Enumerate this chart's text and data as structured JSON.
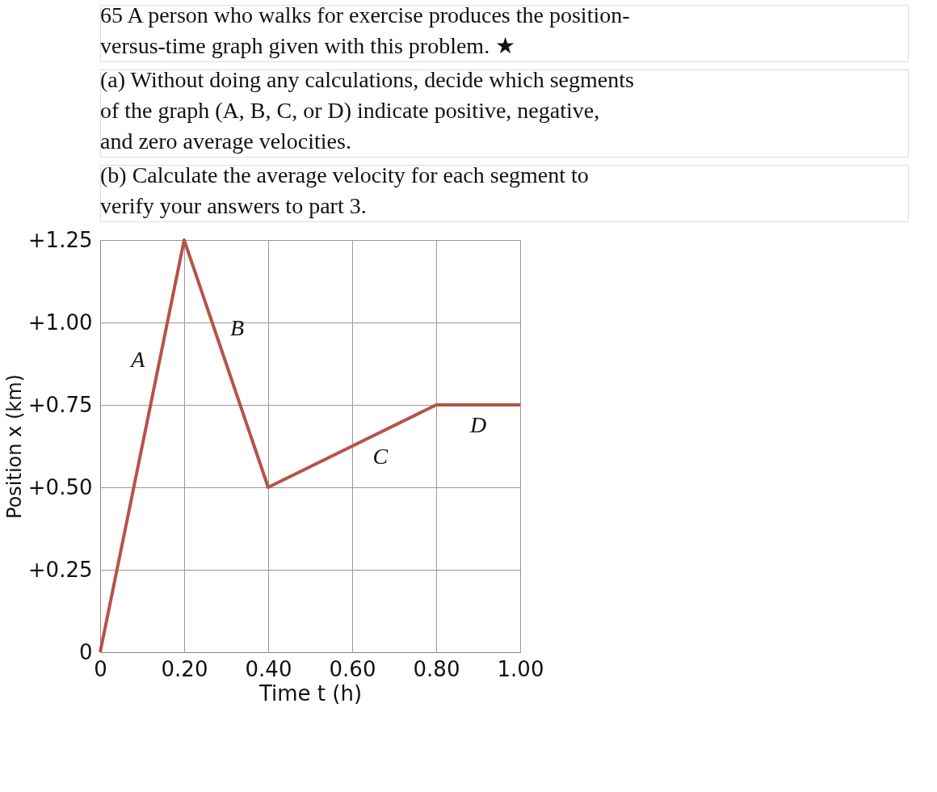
{
  "chart_data": {
    "type": "line",
    "annotations": [
      "65 A person who walks for exercise produces the position-versus-time graph given with this problem. ★",
      "(a) Without doing any calculations, decide which segments of the graph (A, B, C, or D) indicate positive, negative, and zero average velocities.",
      "(b) Calculate the average velocity for each segment to verify your answers to part 3.",
      {
        "text": "A",
        "x": 0.14,
        "y": 0.875
      },
      {
        "text": "B",
        "x": 0.28,
        "y": 0.95
      },
      {
        "text": "C",
        "x": 0.64,
        "y": 0.65
      },
      {
        "text": "D",
        "x": 0.9,
        "y": 0.75
      }
    ],
    "xlabel": "Time t (h)",
    "ylabel": "Position x (km)",
    "x": [
      0,
      0.2,
      0.4,
      0.8,
      1.0
    ],
    "series": [
      {
        "color": "#b5534a",
        "values": [
          0,
          1.25,
          0.5,
          0.75,
          0.75
        ]
      }
    ],
    "xlim": [
      0,
      1.0
    ],
    "xticks": [
      0,
      {
        "value": 0.2,
        "label": "0.20"
      },
      {
        "value": 0.4,
        "label": "0.40"
      },
      {
        "value": 0.6,
        "label": "0.60"
      },
      {
        "value": 0.8,
        "label": "0.80"
      },
      {
        "value": 1.0,
        "label": "1.00"
      }
    ],
    "ylim": [
      0,
      1.25
    ],
    "yticks": [
      0,
      {
        "value": 0.25,
        "label": "+0.25"
      },
      {
        "value": 0.5,
        "label": "+0.50"
      },
      {
        "value": 0.75,
        "label": "+0.75"
      },
      {
        "value": 1.0,
        "label": "+1.00"
      },
      {
        "value": 1.25,
        "label": "+1.25"
      }
    ],
    "grid": true,
    "marker": "none",
    "line_style": "solid"
  }
}
